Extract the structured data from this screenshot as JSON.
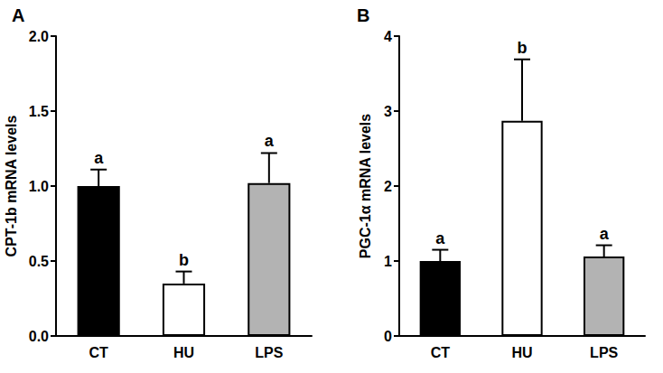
{
  "chart_data": [
    {
      "type": "bar",
      "title": "A",
      "y_label": "CPT-1b mRNA levels",
      "categories": [
        "CT",
        "HU",
        "LPS"
      ],
      "values": [
        1.0,
        0.35,
        1.02
      ],
      "errors": [
        0.11,
        0.08,
        0.2
      ],
      "annotations": [
        "a",
        "b",
        "a"
      ],
      "colors": [
        "#000000",
        "#ffffff",
        "#b3b3b3"
      ],
      "ylim": [
        0,
        2
      ],
      "yticks": [
        {
          "value": 0,
          "label": "0.0"
        },
        {
          "value": 0.5,
          "label": "0.5"
        },
        {
          "value": 1,
          "label": "1.0"
        },
        {
          "value": 1.5,
          "label": "1.5"
        },
        {
          "value": 2,
          "label": "2.0"
        }
      ],
      "grid": false
    },
    {
      "type": "bar",
      "title": "B",
      "y_label": "PGC-1α mRNA levels",
      "categories": [
        "CT",
        "HU",
        "LPS"
      ],
      "values": [
        1.0,
        2.87,
        1.06
      ],
      "errors": [
        0.15,
        0.82,
        0.15
      ],
      "annotations": [
        "a",
        "b",
        "a"
      ],
      "colors": [
        "#000000",
        "#ffffff",
        "#b3b3b3"
      ],
      "ylim": [
        0,
        4
      ],
      "yticks": [
        0,
        1,
        2,
        3,
        4
      ],
      "grid": false
    }
  ]
}
